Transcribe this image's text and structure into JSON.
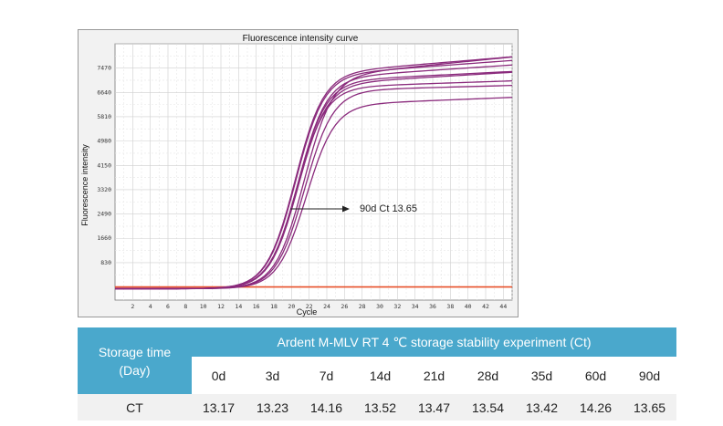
{
  "chart_data": {
    "type": "line",
    "title": "Fluorescence intensity curve",
    "xlabel": "Cycle",
    "ylabel": "Fluorescence intensity",
    "xlim": [
      0,
      45
    ],
    "ylim": [
      -450,
      8300
    ],
    "x_ticks": [
      2,
      4,
      6,
      8,
      10,
      12,
      14,
      16,
      18,
      20,
      22,
      24,
      26,
      28,
      30,
      32,
      34,
      36,
      38,
      40,
      42,
      44
    ],
    "y_ticks": [
      830,
      1660,
      2490,
      3320,
      4150,
      4980,
      5810,
      6640,
      7470
    ],
    "threshold": 0,
    "grid": true,
    "series": [
      {
        "ct": 13.17,
        "plateau": 7300,
        "drift": 25
      },
      {
        "ct": 13.23,
        "plateau": 7250,
        "drift": 22
      },
      {
        "ct": 14.16,
        "plateau": 7200,
        "drift": 30
      },
      {
        "ct": 13.52,
        "plateau": 7150,
        "drift": 20
      },
      {
        "ct": 13.47,
        "plateau": 7050,
        "drift": 15
      },
      {
        "ct": 13.54,
        "plateau": 6950,
        "drift": 18
      },
      {
        "ct": 13.42,
        "plateau": 6850,
        "drift": 10
      },
      {
        "ct": 14.26,
        "plateau": 6750,
        "drift": 8
      },
      {
        "ct": 13.65,
        "plateau": 6250,
        "drift": 12
      }
    ],
    "annotation": {
      "text": "90d Ct 13.65"
    },
    "colors": {
      "curve": "#8a2a7c",
      "threshold": "#e8502a"
    }
  },
  "table": {
    "row_header_line1": "Storage time",
    "row_header_line2": "(Day)",
    "group_header": "Ardent M-MLV RT 4 ℃ storage stability experiment (Ct)",
    "days": [
      "0d",
      "3d",
      "7d",
      "14d",
      "21d",
      "28d",
      "35d",
      "60d",
      "90d"
    ],
    "ct_label": "CT",
    "ct_values": [
      "13.17",
      "13.23",
      "14.16",
      "13.52",
      "13.47",
      "13.54",
      "13.42",
      "14.26",
      "13.65"
    ],
    "header_color": "#4aa8cc"
  }
}
